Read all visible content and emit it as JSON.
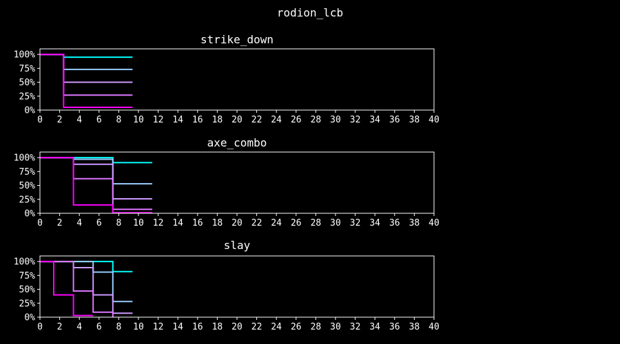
{
  "figure_title": "rodion_lcb",
  "chart_data": [
    {
      "type": "line",
      "step": true,
      "title": "strike_down",
      "xlim": [
        0,
        40
      ],
      "ylim": [
        0,
        1.1
      ],
      "xticks": [
        0,
        2,
        4,
        6,
        8,
        10,
        12,
        14,
        16,
        18,
        20,
        22,
        24,
        26,
        28,
        30,
        32,
        34,
        36,
        38,
        40
      ],
      "yticks": [
        0,
        0.25,
        0.5,
        0.75,
        1.0
      ],
      "yticklabels": [
        "0%",
        "25%",
        "50%",
        "75%",
        "100%"
      ],
      "grid": false,
      "series": [
        {
          "color": "#00ffff",
          "points": [
            [
              0,
              1.0
            ],
            [
              2.4,
              1.0
            ],
            [
              2.4,
              0.95
            ],
            [
              9.4,
              0.95
            ]
          ]
        },
        {
          "color": "#99ccff",
          "points": [
            [
              0,
              1.0
            ],
            [
              2.4,
              1.0
            ],
            [
              2.4,
              0.73
            ],
            [
              9.4,
              0.73
            ]
          ]
        },
        {
          "color": "#cc99ff",
          "points": [
            [
              0,
              1.0
            ],
            [
              2.4,
              1.0
            ],
            [
              2.4,
              0.5
            ],
            [
              9.4,
              0.5
            ]
          ]
        },
        {
          "color": "#dd77ff",
          "points": [
            [
              0,
              1.0
            ],
            [
              2.4,
              1.0
            ],
            [
              2.4,
              0.27
            ],
            [
              9.4,
              0.27
            ]
          ]
        },
        {
          "color": "#ff00ff",
          "points": [
            [
              0,
              1.0
            ],
            [
              2.4,
              1.0
            ],
            [
              2.4,
              0.05
            ],
            [
              9.4,
              0.05
            ]
          ]
        }
      ]
    },
    {
      "type": "line",
      "step": true,
      "title": "axe_combo",
      "xlim": [
        0,
        40
      ],
      "ylim": [
        0,
        1.1
      ],
      "xticks": [
        0,
        2,
        4,
        6,
        8,
        10,
        12,
        14,
        16,
        18,
        20,
        22,
        24,
        26,
        28,
        30,
        32,
        34,
        36,
        38,
        40
      ],
      "yticks": [
        0,
        0.25,
        0.5,
        0.75,
        1.0
      ],
      "yticklabels": [
        "0%",
        "25%",
        "50%",
        "75%",
        "100%"
      ],
      "grid": false,
      "series": [
        {
          "color": "#00ffff",
          "points": [
            [
              0,
              1.0
            ],
            [
              7.4,
              1.0
            ],
            [
              7.4,
              0.91
            ],
            [
              11.4,
              0.91
            ]
          ]
        },
        {
          "color": "#99ccff",
          "points": [
            [
              0,
              1.0
            ],
            [
              3.4,
              1.0
            ],
            [
              3.4,
              0.97
            ],
            [
              7.4,
              0.97
            ],
            [
              7.4,
              0.53
            ],
            [
              11.4,
              0.53
            ]
          ]
        },
        {
          "color": "#cc99ff",
          "points": [
            [
              0,
              1.0
            ],
            [
              3.4,
              1.0
            ],
            [
              3.4,
              0.88
            ],
            [
              7.4,
              0.88
            ],
            [
              7.4,
              0.26
            ],
            [
              11.4,
              0.26
            ]
          ]
        },
        {
          "color": "#dd77ff",
          "points": [
            [
              0,
              1.0
            ],
            [
              3.4,
              1.0
            ],
            [
              3.4,
              0.62
            ],
            [
              7.4,
              0.62
            ],
            [
              7.4,
              0.07
            ],
            [
              11.4,
              0.07
            ]
          ]
        },
        {
          "color": "#ff00ff",
          "points": [
            [
              0,
              1.0
            ],
            [
              3.4,
              1.0
            ],
            [
              3.4,
              0.15
            ],
            [
              7.4,
              0.15
            ],
            [
              7.4,
              0.01
            ],
            [
              11.4,
              0.01
            ]
          ]
        }
      ]
    },
    {
      "type": "line",
      "step": true,
      "title": "slay",
      "xlim": [
        0,
        40
      ],
      "ylim": [
        0,
        1.1
      ],
      "xticks": [
        0,
        2,
        4,
        6,
        8,
        10,
        12,
        14,
        16,
        18,
        20,
        22,
        24,
        26,
        28,
        30,
        32,
        34,
        36,
        38,
        40
      ],
      "yticks": [
        0,
        0.25,
        0.5,
        0.75,
        1.0
      ],
      "yticklabels": [
        "0%",
        "25%",
        "50%",
        "75%",
        "100%"
      ],
      "grid": false,
      "series": [
        {
          "color": "#00ffff",
          "points": [
            [
              0,
              1.0
            ],
            [
              7.4,
              1.0
            ],
            [
              7.4,
              0.82
            ],
            [
              9.4,
              0.82
            ]
          ]
        },
        {
          "color": "#99ccff",
          "points": [
            [
              0,
              1.0
            ],
            [
              5.4,
              1.0
            ],
            [
              5.4,
              0.81
            ],
            [
              7.4,
              0.81
            ],
            [
              7.4,
              0.28
            ],
            [
              9.4,
              0.28
            ]
          ]
        },
        {
          "color": "#cc99ff",
          "points": [
            [
              0,
              1.0
            ],
            [
              3.4,
              1.0
            ],
            [
              3.4,
              0.89
            ],
            [
              5.4,
              0.89
            ],
            [
              5.4,
              0.4
            ],
            [
              7.4,
              0.4
            ],
            [
              7.4,
              0.07
            ],
            [
              9.4,
              0.07
            ]
          ]
        },
        {
          "color": "#dd77ff",
          "points": [
            [
              0,
              1.0
            ],
            [
              3.4,
              1.0
            ],
            [
              3.4,
              0.47
            ],
            [
              5.4,
              0.47
            ],
            [
              5.4,
              0.09
            ],
            [
              7.4,
              0.09
            ],
            [
              7.4,
              0.0
            ]
          ]
        },
        {
          "color": "#ff00ff",
          "points": [
            [
              0,
              1.0
            ],
            [
              1.4,
              1.0
            ],
            [
              1.4,
              0.4
            ],
            [
              3.4,
              0.4
            ],
            [
              3.4,
              0.03
            ],
            [
              5.4,
              0.03
            ]
          ]
        }
      ]
    }
  ]
}
